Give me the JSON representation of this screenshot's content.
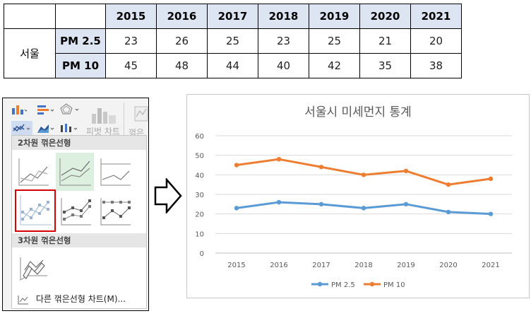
{
  "table": {
    "years": [
      "2015",
      "2016",
      "2017",
      "2018",
      "2019",
      "2020",
      "2021"
    ],
    "city": "서울",
    "rows": [
      {
        "label": "PM 2.5",
        "values": [
          "23",
          "26",
          "25",
          "23",
          "25",
          "21",
          "20"
        ]
      },
      {
        "label": "PM 10",
        "values": [
          "45",
          "48",
          "44",
          "40",
          "42",
          "35",
          "38"
        ]
      }
    ]
  },
  "menu": {
    "section_2d": "2차원 꺾은선형",
    "section_3d": "3차원 꺾은선형",
    "more_link": "다른 꺾은선형 차트(M)...",
    "ribbon_faded": "피벗 차트",
    "ribbon_faded2": "꺾은선",
    "icons": [
      "column-chart-icon",
      "bar-chart-icon",
      "radar-chart-icon",
      "line-chart-icon",
      "area-chart-icon",
      "stock-chart-icon",
      "pivot-chart-icon",
      "sparkline-line-icon"
    ]
  },
  "arrow_icon": "right-arrow-outline-icon",
  "chart_data": {
    "type": "line",
    "title": "서울시 미세먼지 통계",
    "categories": [
      "2015",
      "2016",
      "2017",
      "2018",
      "2019",
      "2020",
      "2021"
    ],
    "series": [
      {
        "name": "PM 2.5",
        "values": [
          23,
          26,
          25,
          23,
          25,
          21,
          20
        ],
        "color": "#5b9bd5"
      },
      {
        "name": "PM 10",
        "values": [
          45,
          48,
          44,
          40,
          42,
          35,
          38
        ],
        "color": "#ed7d31"
      }
    ],
    "ylim": [
      0,
      60
    ],
    "yticks": [
      0,
      10,
      20,
      30,
      40,
      50,
      60
    ],
    "grid": true,
    "legend": "bottom",
    "xlabel": "",
    "ylabel": ""
  }
}
